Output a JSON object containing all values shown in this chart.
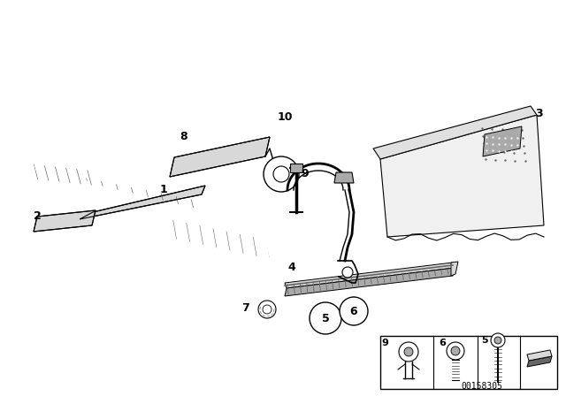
{
  "background_color": "#ffffff",
  "line_color": "#000000",
  "part_number": "00158305",
  "gray_light": "#d8d8d8",
  "gray_mid": "#aaaaaa",
  "gray_dark": "#666666",
  "figsize": [
    6.4,
    4.48
  ],
  "dpi": 100
}
